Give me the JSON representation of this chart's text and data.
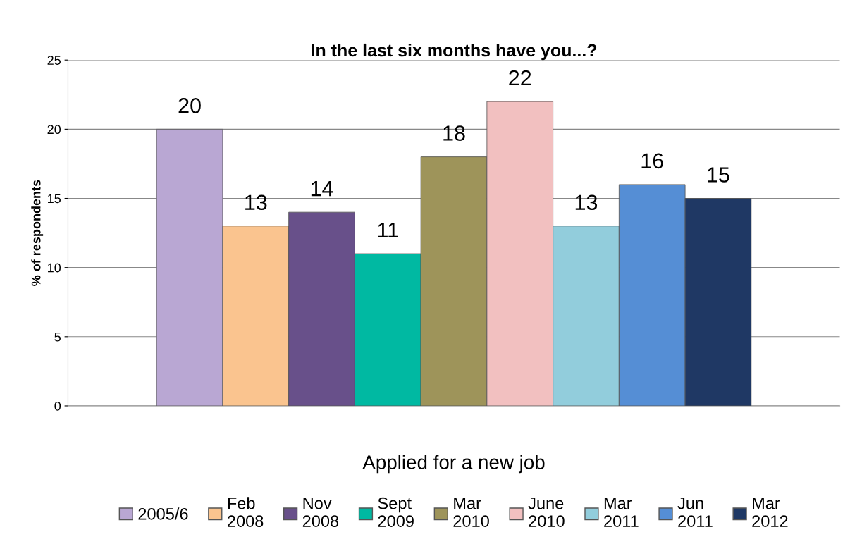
{
  "chart_data": {
    "type": "bar",
    "title": "In the last six months have you...?",
    "ylabel": "% of respondents",
    "categories": [
      "Applied for a new job"
    ],
    "series": [
      {
        "name": "2005/6",
        "color": "#b9a7d3",
        "values": [
          20
        ]
      },
      {
        "name": "Feb 2008",
        "color": "#fac48f",
        "values": [
          13
        ]
      },
      {
        "name": "Nov 2008",
        "color": "#68508a",
        "values": [
          14
        ]
      },
      {
        "name": "Sept 2009",
        "color": "#00b9a2",
        "values": [
          11
        ]
      },
      {
        "name": "Mar 2010",
        "color": "#9e945a",
        "values": [
          18
        ]
      },
      {
        "name": "June 2010",
        "color": "#f2c0c0",
        "values": [
          22
        ]
      },
      {
        "name": "Mar 2011",
        "color": "#92cddc",
        "values": [
          13
        ]
      },
      {
        "name": "Jun 2011",
        "color": "#558ed5",
        "values": [
          16
        ]
      },
      {
        "name": "Mar 2012",
        "color": "#1f3864",
        "values": [
          15
        ]
      }
    ],
    "ylim": [
      0,
      25
    ],
    "yticks": [
      0,
      5,
      10,
      15,
      20,
      25
    ],
    "grid": "y",
    "legend": "bottom",
    "data_labels": true
  }
}
